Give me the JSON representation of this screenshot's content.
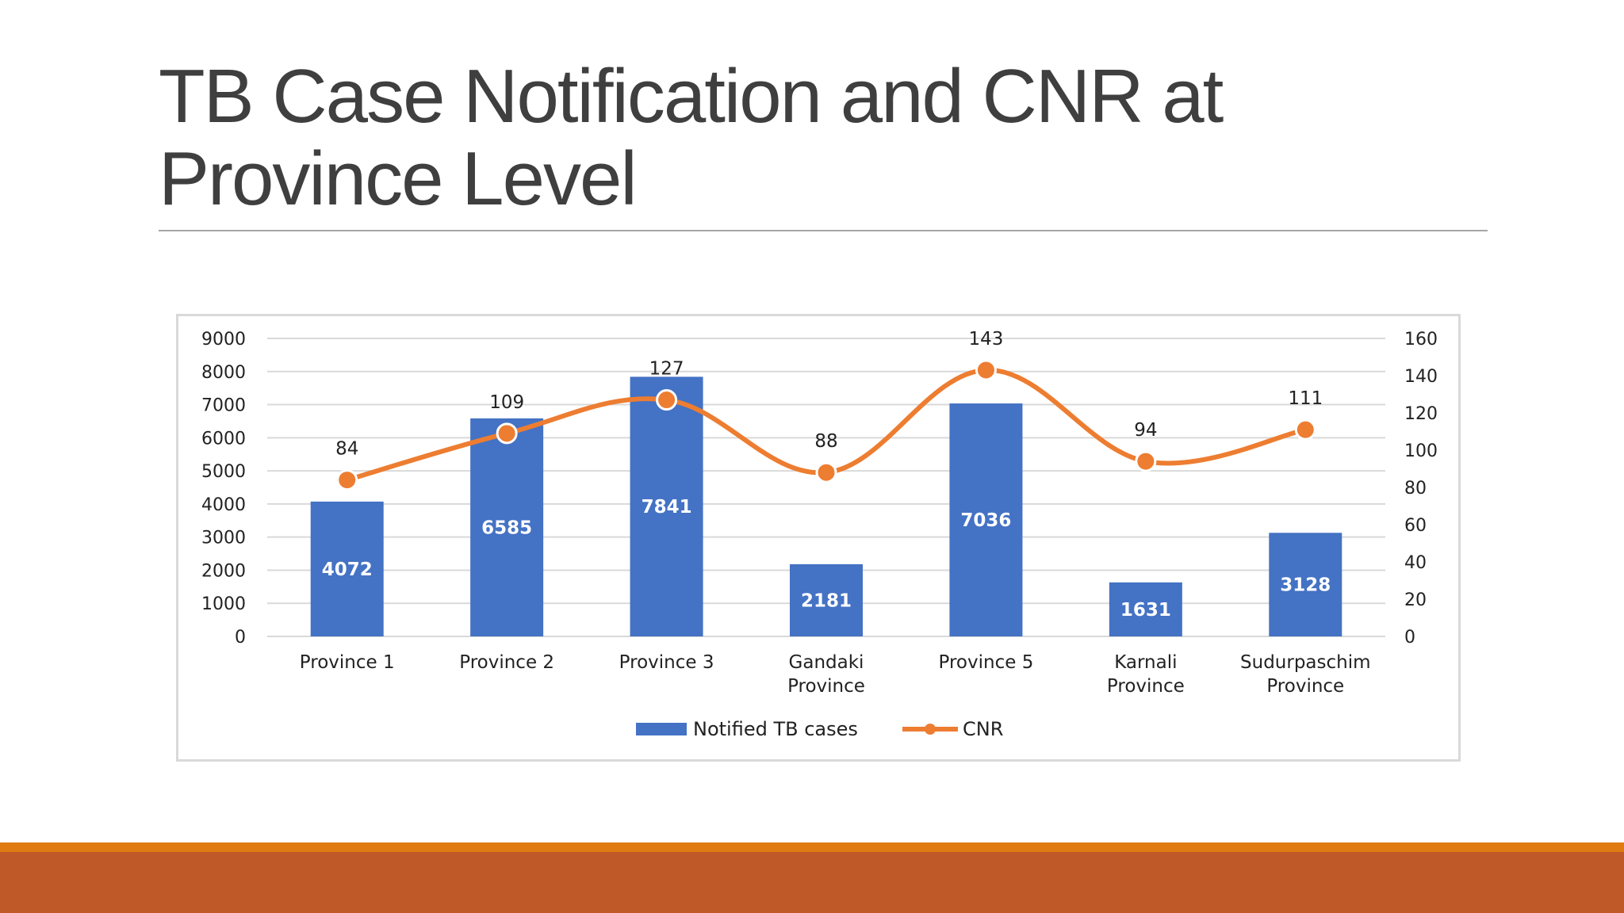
{
  "slide": {
    "title": "TB Case Notification and CNR at Province Level"
  },
  "colors": {
    "bar": "#4472c4",
    "line": "#ed7d31",
    "grid": "#d9d9d9",
    "band_top": "#e07b12",
    "band_bottom": "#bf5a28"
  },
  "chart_data": {
    "type": "bar",
    "title": "",
    "categories": [
      [
        "Province 1"
      ],
      [
        "Province 2"
      ],
      [
        "Province 3"
      ],
      [
        "Gandaki",
        "Province"
      ],
      [
        "Province 5"
      ],
      [
        "Karnali",
        "Province"
      ],
      [
        "Sudurpaschim",
        "Province"
      ]
    ],
    "series": [
      {
        "name": "Notified TB cases",
        "type": "bar",
        "axis": "left",
        "values": [
          4072,
          6585,
          7841,
          2181,
          7036,
          1631,
          3128
        ]
      },
      {
        "name": "CNR",
        "type": "line",
        "axis": "right",
        "values": [
          84,
          109,
          127,
          88,
          143,
          94,
          111
        ]
      }
    ],
    "y_left": {
      "min": 0,
      "max": 9000,
      "ticks": [
        0,
        1000,
        2000,
        3000,
        4000,
        5000,
        6000,
        7000,
        8000,
        9000
      ]
    },
    "y_right": {
      "min": 0,
      "max": 160,
      "ticks": [
        0,
        20,
        40,
        60,
        80,
        100,
        120,
        140,
        160
      ]
    },
    "legend": {
      "position": "bottom",
      "entries": [
        "Notified TB cases",
        "CNR"
      ]
    },
    "grid": true
  }
}
